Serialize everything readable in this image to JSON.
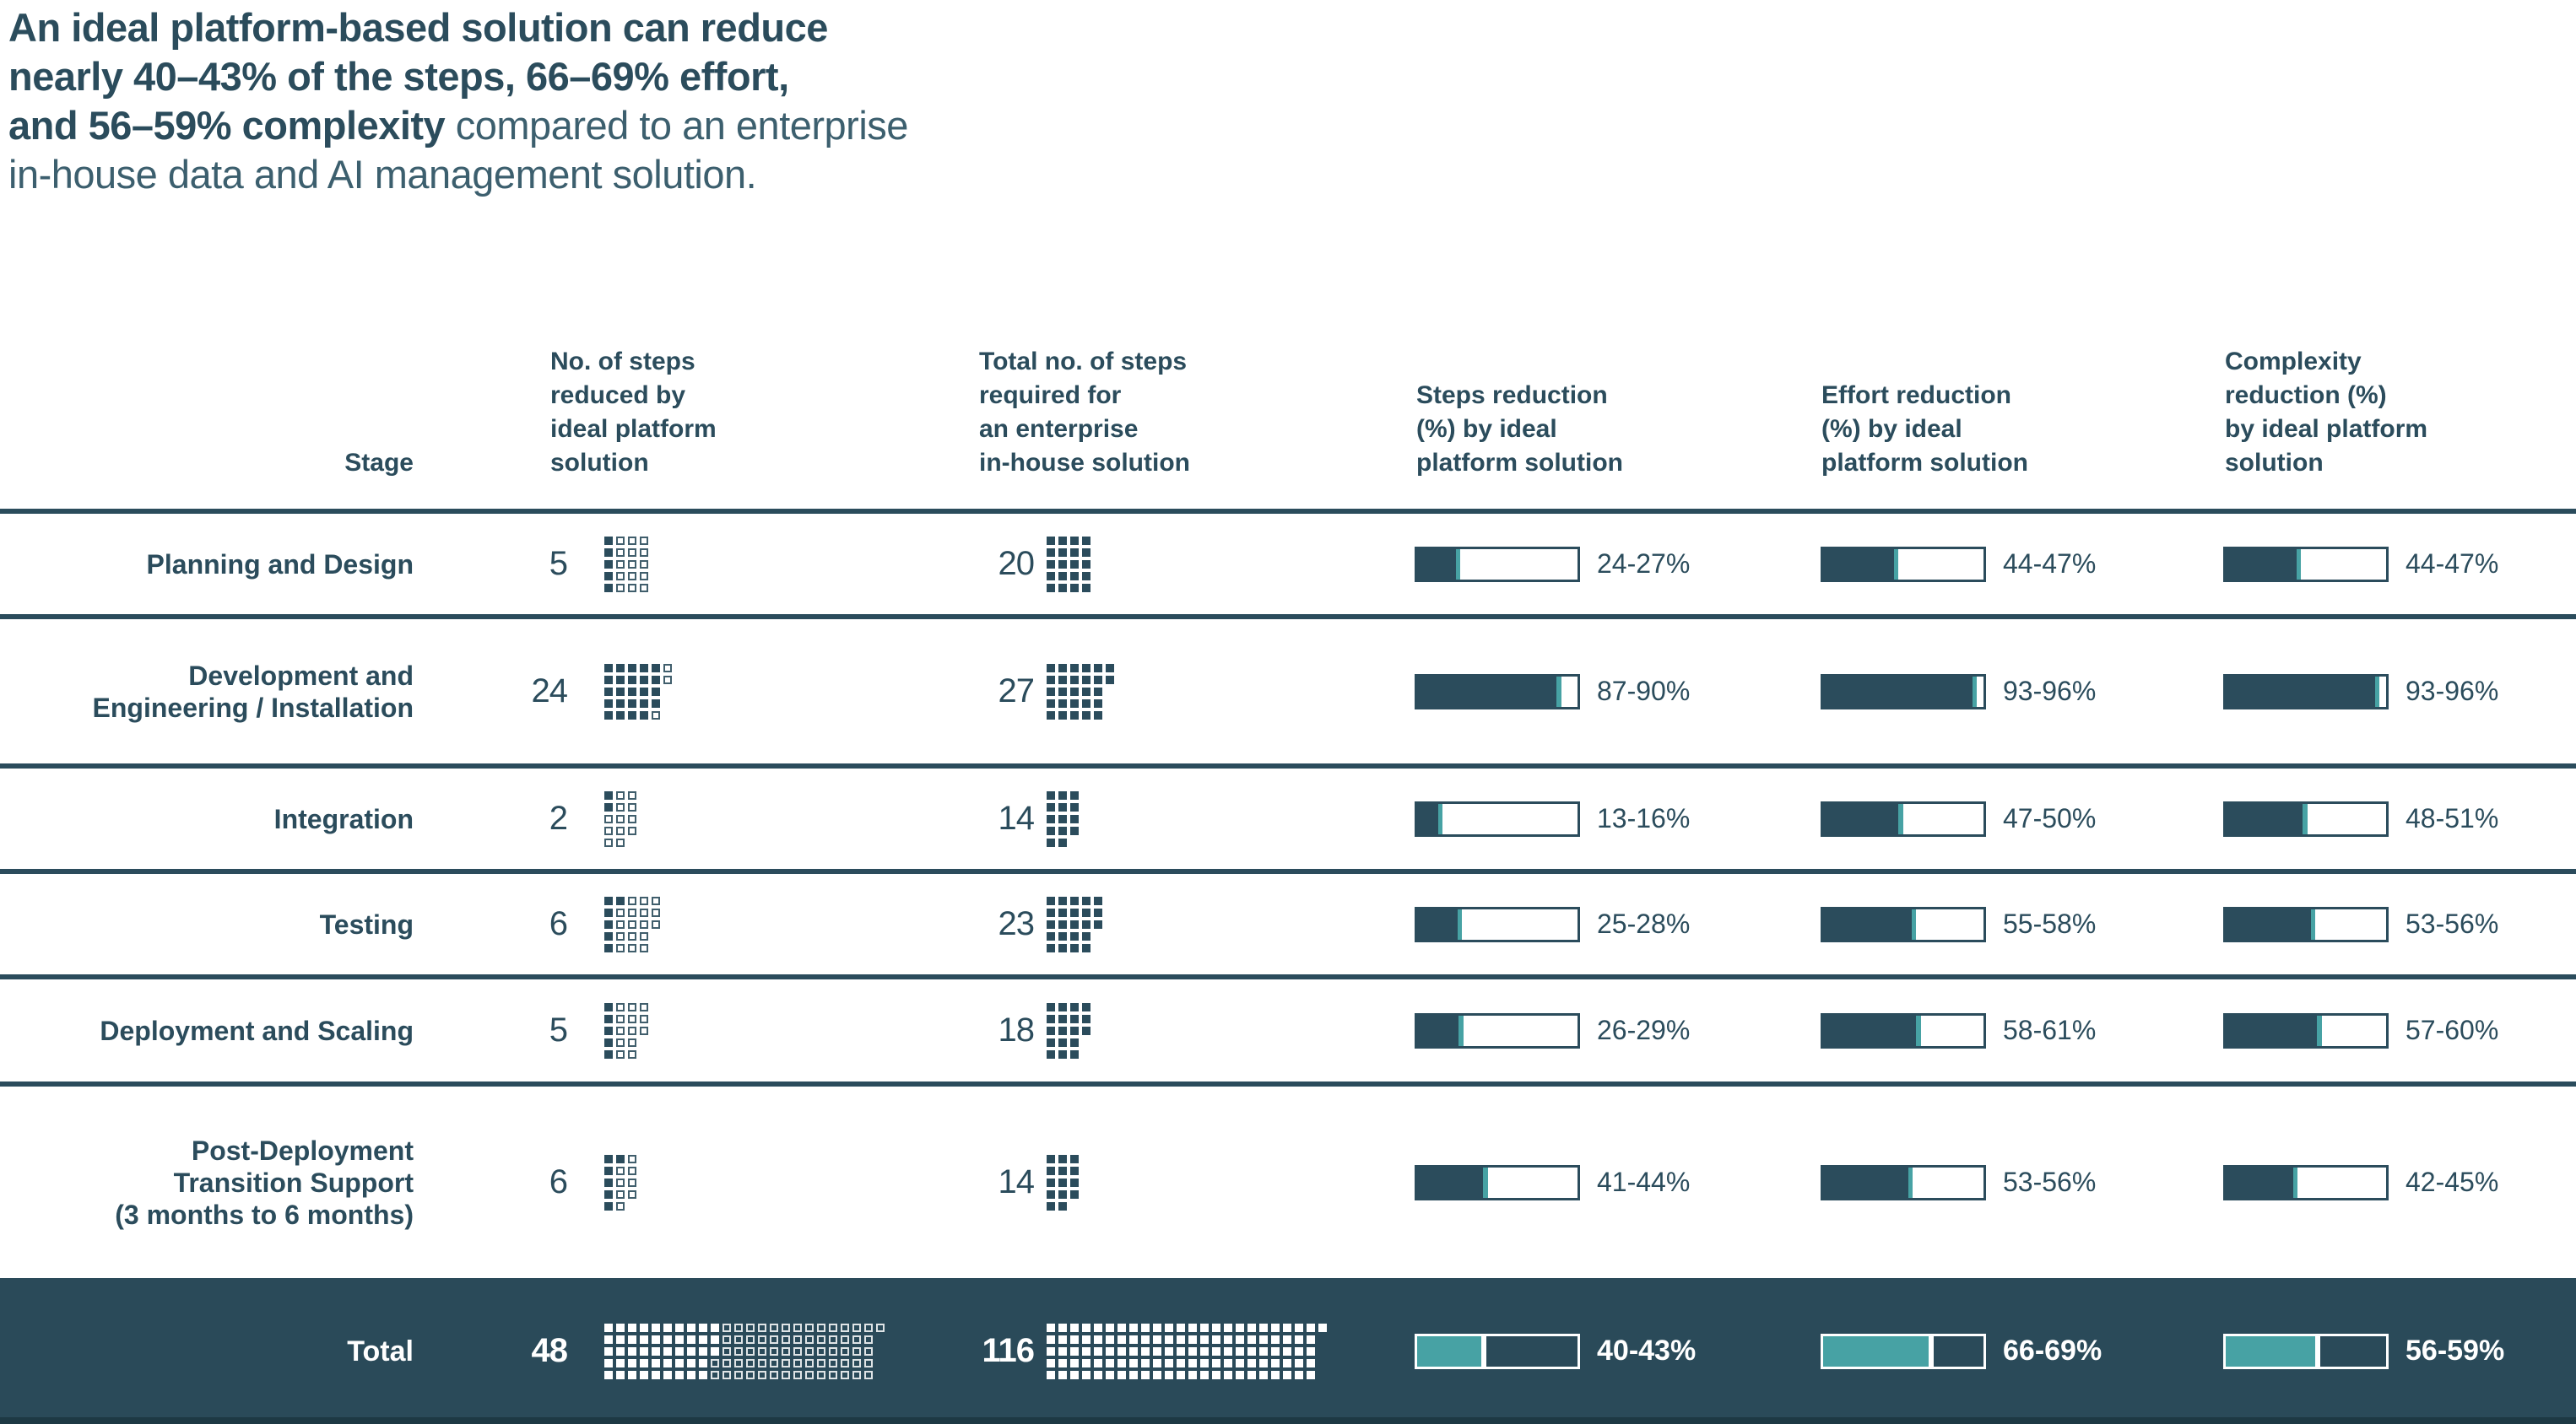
{
  "title": {
    "lines": [
      [
        {
          "text": "An ideal platform-based solution can reduce",
          "bold": true
        }
      ],
      [
        {
          "text": "nearly 40–43% of the steps, 66–69% effort,",
          "bold": true
        }
      ],
      [
        {
          "text": "and 56–59% complexity",
          "bold": true
        },
        {
          "text": " compared to an enterprise",
          "bold": false
        }
      ],
      [
        {
          "text": "in-house data and AI management solution.",
          "bold": false
        }
      ]
    ]
  },
  "colors": {
    "navy": "#2b4c5c",
    "teal": "#47a2a4",
    "band_background": "#2a4a59",
    "bottom_line": "#1d3944",
    "white": "#ffffff"
  },
  "table": {
    "headers": [
      "Stage",
      "No. of steps\nreduced by\nideal platform\nsolution",
      "Total no. of steps\nrequired for\nan enterprise\nin-house solution",
      "Steps reduction\n(%) by ideal\nplatform solution",
      "Effort reduction\n(%) by ideal\nplatform solution",
      "Complexity\nreduction (%)\nby ideal platform\nsolution"
    ],
    "rows": [
      {
        "stage": "Planning and Design",
        "reduced": 5,
        "total": 20,
        "steps": {
          "label": "24-27%",
          "low": 24,
          "high": 27
        },
        "effort": {
          "label": "44-47%",
          "low": 44,
          "high": 47
        },
        "complexity": {
          "label": "44-47%",
          "low": 44,
          "high": 47
        }
      },
      {
        "stage": "Development and\nEngineering / Installation",
        "reduced": 24,
        "total": 27,
        "steps": {
          "label": "87-90%",
          "low": 87,
          "high": 90
        },
        "effort": {
          "label": "93-96%",
          "low": 93,
          "high": 96
        },
        "complexity": {
          "label": "93-96%",
          "low": 93,
          "high": 96
        }
      },
      {
        "stage": "Integration",
        "reduced": 2,
        "total": 14,
        "steps": {
          "label": "13-16%",
          "low": 13,
          "high": 16
        },
        "effort": {
          "label": "47-50%",
          "low": 47,
          "high": 50
        },
        "complexity": {
          "label": "48-51%",
          "low": 48,
          "high": 51
        }
      },
      {
        "stage": "Testing",
        "reduced": 6,
        "total": 23,
        "steps": {
          "label": "25-28%",
          "low": 25,
          "high": 28
        },
        "effort": {
          "label": "55-58%",
          "low": 55,
          "high": 58
        },
        "complexity": {
          "label": "53-56%",
          "low": 53,
          "high": 56
        }
      },
      {
        "stage": "Deployment and Scaling",
        "reduced": 5,
        "total": 18,
        "steps": {
          "label": "26-29%",
          "low": 26,
          "high": 29
        },
        "effort": {
          "label": "58-61%",
          "low": 58,
          "high": 61
        },
        "complexity": {
          "label": "57-60%",
          "low": 57,
          "high": 60
        }
      },
      {
        "stage": "Post-Deployment\nTransition Support\n(3 months to 6 months)",
        "reduced": 6,
        "total": 14,
        "steps": {
          "label": "41-44%",
          "low": 41,
          "high": 44
        },
        "effort": {
          "label": "53-56%",
          "low": 53,
          "high": 56
        },
        "complexity": {
          "label": "42-45%",
          "low": 42,
          "high": 45
        }
      }
    ],
    "total_row": {
      "stage": "Total",
      "reduced": 48,
      "total": 116,
      "steps": {
        "label": "40-43%",
        "low": 40,
        "high": 43
      },
      "effort": {
        "label": "66-69%",
        "low": 66,
        "high": 69
      },
      "complexity": {
        "label": "56-59%",
        "low": 56,
        "high": 59
      }
    }
  },
  "chart_data": {
    "type": "table",
    "title": "An ideal platform-based solution can reduce nearly 40–43% of the steps, 66–69% effort, and 56–59% complexity compared to an enterprise in-house data and AI management solution.",
    "columns": [
      "Stage",
      "No. of steps reduced by ideal platform solution",
      "Total no. of steps required for an enterprise in-house solution",
      "Steps reduction (%) by ideal platform solution",
      "Effort reduction (%) by ideal platform solution",
      "Complexity reduction (%) by ideal platform solution"
    ],
    "categories": [
      "Planning and Design",
      "Development and Engineering / Installation",
      "Integration",
      "Testing",
      "Deployment and Scaling",
      "Post-Deployment Transition Support (3 months to 6 months)",
      "Total"
    ],
    "series": [
      {
        "name": "No. of steps reduced by ideal platform solution",
        "values": [
          5,
          24,
          2,
          6,
          5,
          6,
          48
        ]
      },
      {
        "name": "Total no. of steps required for an enterprise in-house solution",
        "values": [
          20,
          27,
          14,
          23,
          18,
          14,
          116
        ]
      },
      {
        "name": "Steps reduction (%) by ideal platform solution",
        "values": [
          [
            24,
            27
          ],
          [
            87,
            90
          ],
          [
            13,
            16
          ],
          [
            25,
            28
          ],
          [
            26,
            29
          ],
          [
            41,
            44
          ],
          [
            40,
            43
          ]
        ]
      },
      {
        "name": "Effort reduction (%) by ideal platform solution",
        "values": [
          [
            44,
            47
          ],
          [
            93,
            96
          ],
          [
            47,
            50
          ],
          [
            55,
            58
          ],
          [
            58,
            61
          ],
          [
            53,
            56
          ],
          [
            66,
            69
          ]
        ]
      },
      {
        "name": "Complexity reduction (%) by ideal platform solution",
        "values": [
          [
            44,
            47
          ],
          [
            93,
            96
          ],
          [
            48,
            51
          ],
          [
            53,
            56
          ],
          [
            57,
            60
          ],
          [
            42,
            45
          ],
          [
            56,
            59
          ]
        ]
      }
    ],
    "layout_hints": {
      "waffle": "square pictograms, 5 squares per column, column-major fill; filled squares = steps reduced, outlined squares = remaining steps of total",
      "bars": "horizontal range bars: solid fill to lower bound, 3%-wide accent sliver marks the range, axis 0–100%",
      "total_row": "inverted colors on dark band with teal fills and white text"
    }
  }
}
